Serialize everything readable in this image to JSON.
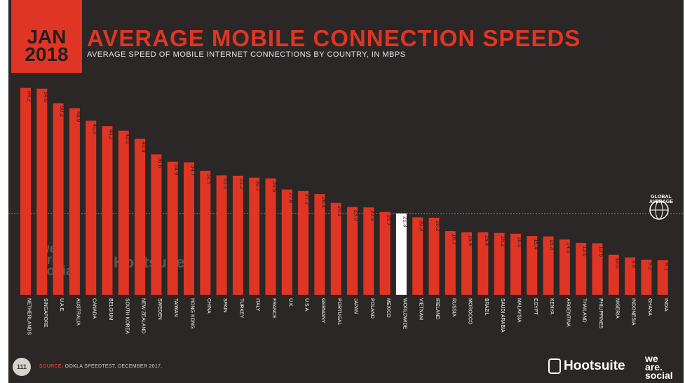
{
  "header": {
    "badge_month": "JAN",
    "badge_year": "2018",
    "title": "AVERAGE MOBILE CONNECTION SPEEDS",
    "subtitle": "AVERAGE SPEED OF MOBILE INTERNET CONNECTIONS BY COUNTRY, IN MBPS"
  },
  "footer": {
    "page_number": "111",
    "source_label": "SOURCE:",
    "source_text": "OOKLA SPEEDTEST, DECEMBER 2017.",
    "brand_hootsuite": "Hootsuite",
    "brand_was": [
      "we",
      "are.",
      "social"
    ]
  },
  "watermark": {
    "was": [
      "we",
      "are.",
      "social"
    ],
    "hootsuite": "Hootsuite"
  },
  "globe_label": [
    "GLOBAL",
    "AVERAGE"
  ],
  "colors": {
    "background": "#2b2726",
    "accent": "#e03524",
    "highlight_bar": "#ffffff",
    "avg_line": "#8a8583"
  },
  "chart_data": {
    "type": "bar",
    "title": "AVERAGE MOBILE CONNECTION SPEEDS",
    "subtitle": "AVERAGE SPEED OF MOBILE INTERNET CONNECTIONS BY COUNTRY, IN MBPS",
    "categories": [
      "NETHERLANDS",
      "SINGAPORE",
      "U.A.E.",
      "AUSTRALIA",
      "CANADA",
      "BELGIUM",
      "SOUTH KOREA",
      "NEW ZEALAND",
      "SWEDEN",
      "TAIWAN",
      "HONG KONG",
      "CHINA",
      "SPAIN",
      "TURKEY",
      "ITALY",
      "FRANCE",
      "U.K.",
      "U.S.A.",
      "GERMANY",
      "PORTUGAL",
      "JAPAN",
      "POLAND",
      "MEXICO",
      "WORLDWIDE",
      "VIETNAM",
      "IRELAND",
      "RUSSIA",
      "MOROCCO",
      "BRAZIL",
      "SAUDI ARABIA",
      "MALAYSIA",
      "EGYPT",
      "KENYA",
      "ARGENTINA",
      "THAILAND",
      "PHILIPPINES",
      "NIGERIA",
      "INDONESIA",
      "GHANA",
      "INDIA"
    ],
    "values": [
      54.2,
      54.0,
      50.2,
      48.9,
      45.6,
      44.2,
      43.0,
      40.9,
      36.8,
      34.9,
      34.7,
      32.5,
      31.3,
      31.2,
      30.7,
      30.5,
      27.6,
      27.2,
      26.4,
      24.1,
      23.0,
      22.9,
      21.7,
      21.3,
      20.3,
      20.2,
      16.7,
      16.4,
      16.4,
      16.2,
      16.0,
      15.4,
      15.3,
      14.5,
      13.6,
      13.5,
      10.5,
      9.8,
      9.2,
      9.1
    ],
    "value_labels": [
      "54.2",
      "54.0",
      "50.2",
      "48.9",
      "45.6",
      "44.2",
      "43.0",
      "40.9",
      "36.8",
      "34.9",
      "34.7",
      "32.5",
      "31.3",
      "31.2",
      "30.7",
      "30.5",
      "27.6",
      "27.2",
      "26.4",
      "24.1",
      "23.0",
      "22.9",
      "21.7",
      "21.3",
      "20.3",
      "20.2",
      "16.7",
      "16.4",
      "16.4",
      "16.2",
      "16.0",
      "15.4",
      "15.3",
      "14.5",
      "13.6",
      "13.5",
      "10.5",
      "9.8",
      "9.2",
      "9.1"
    ],
    "highlight_category": "WORLDWIDE",
    "reference_line": 21.3,
    "ylim": [
      0,
      55
    ],
    "grid": false,
    "xlabel": "",
    "ylabel": ""
  }
}
